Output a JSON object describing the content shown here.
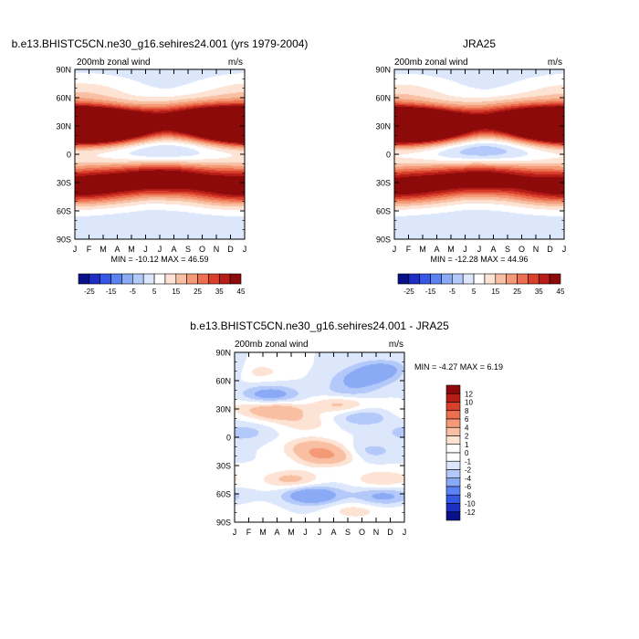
{
  "colors": {
    "frame": "#000000",
    "background": "#ffffff"
  },
  "chart_data": [
    {
      "type": "heatmap",
      "title": "b.e13.BHISTC5CN.ne30_g16.sehires24.001 (yrs 1979-2004)",
      "left_label": "200mb zonal wind",
      "right_label": "m/s",
      "x": [
        "J",
        "F",
        "M",
        "A",
        "M",
        "J",
        "J",
        "A",
        "S",
        "O",
        "N",
        "D",
        "J"
      ],
      "y": [
        "90N",
        "60N",
        "30N",
        "0",
        "30S",
        "60S",
        "90S"
      ],
      "stats": "MIN = -10.12 MAX =  46.59",
      "colorbar": {
        "orientation": "horizontal",
        "labels": [
          "-25",
          "-15",
          "-5",
          "5",
          "15",
          "25",
          "35",
          "45"
        ],
        "colors": [
          "#08108a",
          "#1c2fc2",
          "#3557e6",
          "#5b82f2",
          "#8aaaf6",
          "#b3c9fa",
          "#dde7fc",
          "#ffffff",
          "#fde3d4",
          "#f9bfa2",
          "#f49a76",
          "#ec6f4f",
          "#d8402c",
          "#b71d17",
          "#8c0a0a"
        ]
      },
      "features": [
        {
          "lat": 30,
          "month": 0.5,
          "value": 42
        },
        {
          "lat": 30,
          "month": 2.0,
          "value": 36
        },
        {
          "lat": 32,
          "month": 4.0,
          "value": 18
        },
        {
          "lat": 42,
          "month": 7.5,
          "value": 15
        },
        {
          "lat": 35,
          "month": 10.0,
          "value": 28
        },
        {
          "lat": 30,
          "month": 11.6,
          "value": 34
        },
        {
          "lat": 2,
          "month": 6.0,
          "value": -8
        },
        {
          "lat": -25,
          "month": 6.3,
          "value": 44
        },
        {
          "lat": -35,
          "month": 2.0,
          "value": 22
        },
        {
          "lat": -38,
          "month": 11.0,
          "value": 26
        },
        {
          "lat": -20,
          "month": 0.5,
          "value": 12
        },
        {
          "lat": 65,
          "month": 0.5,
          "value": 10
        },
        {
          "lat": -85,
          "month": 6.0,
          "value": -3
        }
      ]
    },
    {
      "type": "heatmap",
      "title": "JRA25",
      "left_label": "200mb zonal wind",
      "right_label": "m/s",
      "x": [
        "J",
        "F",
        "M",
        "A",
        "M",
        "J",
        "J",
        "A",
        "S",
        "O",
        "N",
        "D",
        "J"
      ],
      "y": [
        "90N",
        "60N",
        "30N",
        "0",
        "30S",
        "60S",
        "90S"
      ],
      "stats": "MIN = -12.28 MAX =  44.96",
      "colorbar": {
        "orientation": "horizontal",
        "labels": [
          "-25",
          "-15",
          "-5",
          "5",
          "15",
          "25",
          "35",
          "45"
        ],
        "colors": [
          "#08108a",
          "#1c2fc2",
          "#3557e6",
          "#5b82f2",
          "#8aaaf6",
          "#b3c9fa",
          "#dde7fc",
          "#ffffff",
          "#fde3d4",
          "#f9bfa2",
          "#f49a76",
          "#ec6f4f",
          "#d8402c",
          "#b71d17",
          "#8c0a0a"
        ]
      },
      "features": [
        {
          "lat": 30,
          "month": 0.5,
          "value": 40
        },
        {
          "lat": 30,
          "month": 2.0,
          "value": 34
        },
        {
          "lat": 32,
          "month": 4.0,
          "value": 16
        },
        {
          "lat": 42,
          "month": 7.5,
          "value": 14
        },
        {
          "lat": 35,
          "month": 10.0,
          "value": 26
        },
        {
          "lat": 30,
          "month": 11.6,
          "value": 33
        },
        {
          "lat": 3,
          "month": 6.0,
          "value": -11
        },
        {
          "lat": -25,
          "month": 6.3,
          "value": 40
        },
        {
          "lat": -35,
          "month": 2.0,
          "value": 21
        },
        {
          "lat": -38,
          "month": 11.0,
          "value": 25
        },
        {
          "lat": -20,
          "month": 0.5,
          "value": 11
        },
        {
          "lat": 65,
          "month": 0.5,
          "value": 9
        },
        {
          "lat": -85,
          "month": 6.0,
          "value": -3
        }
      ]
    },
    {
      "type": "heatmap",
      "title": "b.e13.BHISTC5CN.ne30_g16.sehires24.001 - JRA25",
      "left_label": "200mb zonal wind",
      "right_label": "m/s",
      "x": [
        "J",
        "F",
        "M",
        "A",
        "M",
        "J",
        "J",
        "A",
        "S",
        "O",
        "N",
        "D",
        "J"
      ],
      "y": [
        "90N",
        "60N",
        "30N",
        "0",
        "30S",
        "60S",
        "90S"
      ],
      "stats": "MIN =  -4.27 MAX =   6.19",
      "colorbar": {
        "orientation": "vertical",
        "labels": [
          "12",
          "10",
          "8",
          "6",
          "4",
          "2",
          "1",
          "0",
          "-1",
          "-2",
          "-4",
          "-6",
          "-8",
          "-10",
          "-12"
        ],
        "colors": [
          "#8c0a0a",
          "#b71d17",
          "#d8402c",
          "#ec6f4f",
          "#f49a76",
          "#f9bfa2",
          "#fde3d4",
          "#ffffff",
          "#ffffff",
          "#dde7fc",
          "#b3c9fa",
          "#8aaaf6",
          "#5b82f2",
          "#3557e6",
          "#1c2fc2",
          "#08108a"
        ]
      },
      "features": [
        {
          "lat": 70,
          "month": 1.5,
          "value": 1.5
        },
        {
          "lat": 62,
          "month": 9.0,
          "value": -2.5
        },
        {
          "lat": 72,
          "month": 10.5,
          "value": -3.0
        },
        {
          "lat": 45,
          "month": 2.5,
          "value": -3.0
        },
        {
          "lat": 48,
          "month": 8.0,
          "value": -1.5
        },
        {
          "lat": 32,
          "month": 0.5,
          "value": 1.0
        },
        {
          "lat": 28,
          "month": 3.0,
          "value": 3.5
        },
        {
          "lat": 35,
          "month": 7.5,
          "value": 2.5
        },
        {
          "lat": 22,
          "month": 9.0,
          "value": -2.0
        },
        {
          "lat": 15,
          "month": 5.0,
          "value": 1.5
        },
        {
          "lat": 5,
          "month": 0.5,
          "value": -1.5
        },
        {
          "lat": -10,
          "month": 5.5,
          "value": 2.5
        },
        {
          "lat": -20,
          "month": 6.5,
          "value": 4.0
        },
        {
          "lat": -15,
          "month": 9.5,
          "value": -1.5
        },
        {
          "lat": -45,
          "month": 4.0,
          "value": 2.5
        },
        {
          "lat": -45,
          "month": 10.5,
          "value": 2.0
        },
        {
          "lat": -62,
          "month": 5.5,
          "value": -4.0
        },
        {
          "lat": -63,
          "month": 10.5,
          "value": -2.5
        },
        {
          "lat": -78,
          "month": 8.5,
          "value": 1.5
        },
        {
          "lat": -80,
          "month": 1.0,
          "value": 1.0
        }
      ]
    }
  ]
}
